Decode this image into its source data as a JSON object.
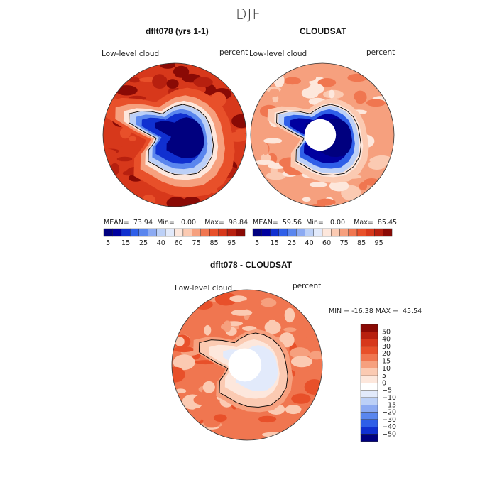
{
  "figure": {
    "season": "DJF",
    "colors": {
      "blues": [
        "#00007f",
        "#00009f",
        "#1030d0",
        "#2f5fe8",
        "#5a86ee",
        "#8caaf2",
        "#bcd0f7",
        "#e2eafb"
      ],
      "reds": [
        "#fde7dc",
        "#fbcab2",
        "#f6a07e",
        "#f07650",
        "#e8502a",
        "#d7381b",
        "#b7200f",
        "#8a0a05"
      ],
      "ocean_edge": "#333333",
      "coast": "#000000",
      "hole": "#ffffff"
    }
  },
  "chart_data": [
    {
      "type": "heatmap",
      "title": "dflt078 (yrs 1-1)",
      "left_label": "Low-level cloud",
      "right_label": "percent",
      "stats": {
        "mean_label": "MEAN=",
        "mean": "73.94",
        "min_label": "Min=",
        "min": "0.00",
        "max_label": "Max=",
        "max": "98.84"
      },
      "colorbar": {
        "levels": [
          5,
          10,
          15,
          20,
          25,
          30,
          40,
          50,
          60,
          70,
          75,
          80,
          85,
          90,
          95
        ],
        "tick_labels": [
          "5",
          "15",
          "25",
          "40",
          "60",
          "75",
          "85",
          "95"
        ]
      },
      "projection": "south polar stereographic",
      "missing_pole": false
    },
    {
      "type": "heatmap",
      "title": "CLOUDSAT",
      "left_label": "Low-level cloud",
      "right_label": "percent",
      "stats": {
        "mean_label": "MEAN=",
        "mean": "59.56",
        "min_label": "Min=",
        "min": "0.00",
        "max_label": "Max=",
        "max": "85.45"
      },
      "colorbar": {
        "levels": [
          5,
          10,
          15,
          20,
          25,
          30,
          40,
          50,
          60,
          70,
          75,
          80,
          85,
          90,
          95
        ],
        "tick_labels": [
          "5",
          "15",
          "25",
          "40",
          "60",
          "75",
          "85",
          "95"
        ]
      },
      "projection": "south polar stereographic",
      "missing_pole": true
    },
    {
      "type": "heatmap",
      "title": "dflt078 - CLOUDSAT",
      "left_label": "Low-level cloud",
      "right_label": "percent",
      "stats": {
        "min_label": "MIN =",
        "min": "-16.38",
        "max_label": "MAX =",
        "max": "45.54"
      },
      "colorbar": {
        "levels": [
          -50,
          -40,
          -30,
          -20,
          -15,
          -10,
          -5,
          0,
          5,
          10,
          15,
          20,
          30,
          40,
          50
        ],
        "tick_labels": [
          "50",
          "40",
          "30",
          "20",
          "15",
          "10",
          "5",
          "0",
          "−5",
          "−10",
          "−15",
          "−20",
          "−30",
          "−40",
          "−50"
        ]
      },
      "projection": "south polar stereographic",
      "missing_pole": true
    }
  ]
}
